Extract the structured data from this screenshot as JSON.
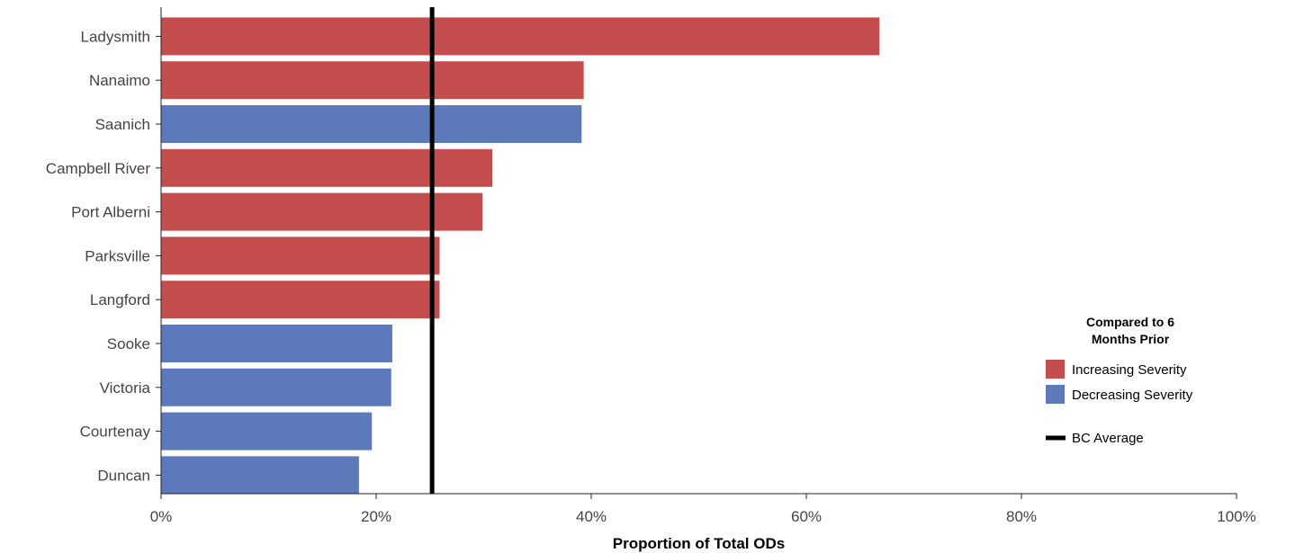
{
  "chart_data": {
    "type": "bar",
    "orientation": "horizontal",
    "categories": [
      "Ladysmith",
      "Nanaimo",
      "Saanich",
      "Campbell River",
      "Port Alberni",
      "Parksville",
      "Langford",
      "Sooke",
      "Victoria",
      "Courtenay",
      "Duncan"
    ],
    "values": [
      66.8,
      39.3,
      39.1,
      30.8,
      29.9,
      25.9,
      25.9,
      21.5,
      21.4,
      19.6,
      18.4
    ],
    "severity": [
      "increasing",
      "increasing",
      "decreasing",
      "increasing",
      "increasing",
      "increasing",
      "increasing",
      "decreasing",
      "decreasing",
      "decreasing",
      "decreasing"
    ],
    "bc_average": 25.2,
    "xlim": [
      0,
      100
    ],
    "x_ticks": [
      0,
      20,
      40,
      60,
      80,
      100
    ],
    "x_tick_labels": [
      "0%",
      "20%",
      "40%",
      "60%",
      "80%",
      "100%"
    ],
    "xlabel": "Proportion of Total ODs",
    "ylabel": "",
    "grid": false,
    "legend": {
      "position": "right",
      "title_lines": [
        "Compared to 6",
        "Months Prior"
      ],
      "items": [
        {
          "key": "increasing",
          "label": "Increasing Severity",
          "color": "#c44e4e"
        },
        {
          "key": "decreasing",
          "label": "Decreasing Severity",
          "color": "#5b79bb"
        }
      ],
      "line_item": {
        "label": "BC Average",
        "color": "#000000"
      }
    }
  }
}
